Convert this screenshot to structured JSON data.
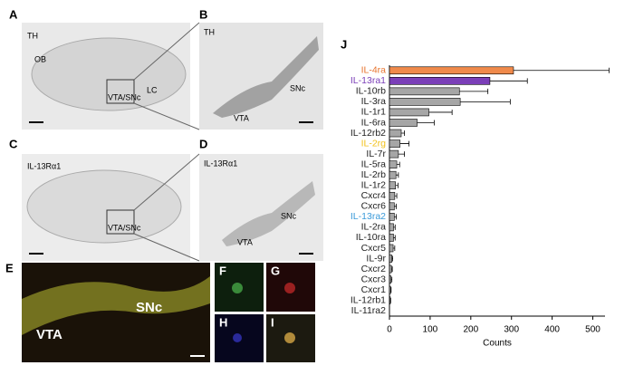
{
  "panels": {
    "A": {
      "letter": "A",
      "stain": "TH",
      "ob": "OB",
      "box": "VTA/SNc",
      "lc": "LC"
    },
    "B": {
      "letter": "B",
      "stain": "TH",
      "snc": "SNc",
      "vta": "VTA"
    },
    "C": {
      "letter": "C",
      "stain": "IL-13Rα1",
      "box": "VTA/SNc"
    },
    "D": {
      "letter": "D",
      "stain": "IL-13Rα1",
      "snc": "SNc",
      "vta": "VTA"
    },
    "E": {
      "letter": "E",
      "vta": "VTA",
      "snc": "SNc"
    },
    "F": {
      "letter": "F"
    },
    "G": {
      "letter": "G"
    },
    "H": {
      "letter": "H"
    },
    "I": {
      "letter": "I"
    },
    "J": {
      "letter": "J"
    }
  },
  "chart_data": {
    "type": "bar",
    "orientation": "horizontal",
    "x_label": "Counts",
    "categories": [
      "IL-4ra",
      "IL-13ra1",
      "IL-10rb",
      "IL-3ra",
      "IL-1r1",
      "IL-6ra",
      "IL-12rb2",
      "IL-2rg",
      "IL-7r",
      "IL-5ra",
      "IL-2rb",
      "IL-1r2",
      "Cxcr4",
      "Cxcr6",
      "IL-13ra2",
      "IL-2ra",
      "IL-10ra",
      "Cxcr5",
      "IL-9r",
      "Cxcr2",
      "Cxcr3",
      "Cxcr1",
      "IL-12rb1",
      "IL-11ra2"
    ],
    "values": [
      305,
      247,
      172,
      174,
      97,
      68,
      29,
      26,
      22,
      18,
      16,
      15,
      13,
      12,
      12,
      10,
      10,
      9,
      6,
      5,
      4,
      3,
      2,
      0
    ],
    "errors": [
      235,
      92,
      70,
      123,
      57,
      42,
      8,
      22,
      15,
      7,
      6,
      6,
      5,
      5,
      5,
      4,
      4,
      4,
      2,
      2,
      2,
      1,
      1,
      0
    ],
    "bar_colors": [
      "#f08a4b",
      "#7b3fb8",
      "#a6a6a6",
      "#a6a6a6",
      "#a6a6a6",
      "#a6a6a6",
      "#a6a6a6",
      "#a6a6a6",
      "#a6a6a6",
      "#a6a6a6",
      "#a6a6a6",
      "#a6a6a6",
      "#a6a6a6",
      "#a6a6a6",
      "#a6a6a6",
      "#a6a6a6",
      "#a6a6a6",
      "#a6a6a6",
      "#a6a6a6",
      "#a6a6a6",
      "#a6a6a6",
      "#a6a6a6",
      "#a6a6a6",
      "#a6a6a6"
    ],
    "label_colors": [
      "#e8742e",
      "#7b3fb8",
      "#222222",
      "#222222",
      "#222222",
      "#222222",
      "#222222",
      "#f2c21c",
      "#222222",
      "#222222",
      "#222222",
      "#222222",
      "#222222",
      "#222222",
      "#3a9ad9",
      "#222222",
      "#222222",
      "#222222",
      "#222222",
      "#222222",
      "#222222",
      "#222222",
      "#222222",
      "#222222"
    ],
    "xlim": [
      0,
      530
    ],
    "xticks": [
      0,
      100,
      200,
      300,
      400,
      500
    ]
  }
}
